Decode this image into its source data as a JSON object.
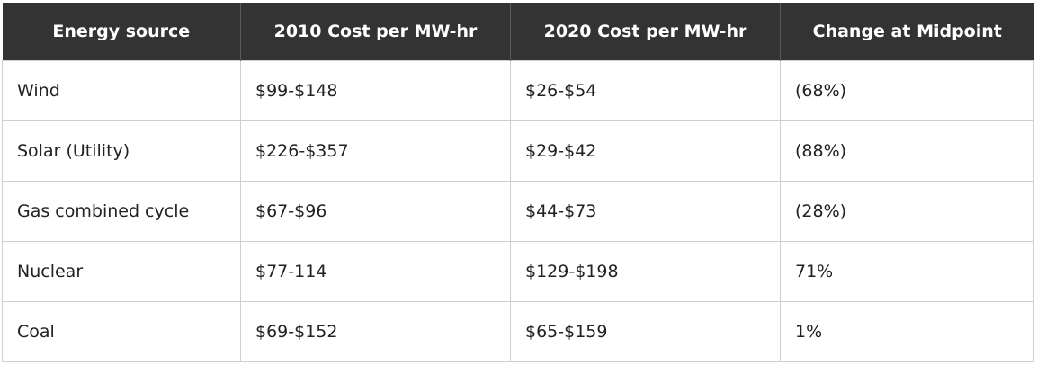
{
  "table": {
    "headers": [
      "Energy source",
      "2010 Cost per MW-hr",
      "2020 Cost per MW-hr",
      "Change at Midpoint"
    ],
    "rows": [
      [
        "Wind",
        "$99-$148",
        "$26-$54",
        "(68%)"
      ],
      [
        "Solar (Utility)",
        "$226-$357",
        "$29-$42",
        "(88%)"
      ],
      [
        "Gas combined cycle",
        "$67-$96",
        "$44-$73",
        "(28%)"
      ],
      [
        "Nuclear",
        "$77-114",
        "$129-$198",
        "71%"
      ],
      [
        "Coal",
        "$69-$152",
        "$65-$159",
        "1%"
      ]
    ]
  }
}
